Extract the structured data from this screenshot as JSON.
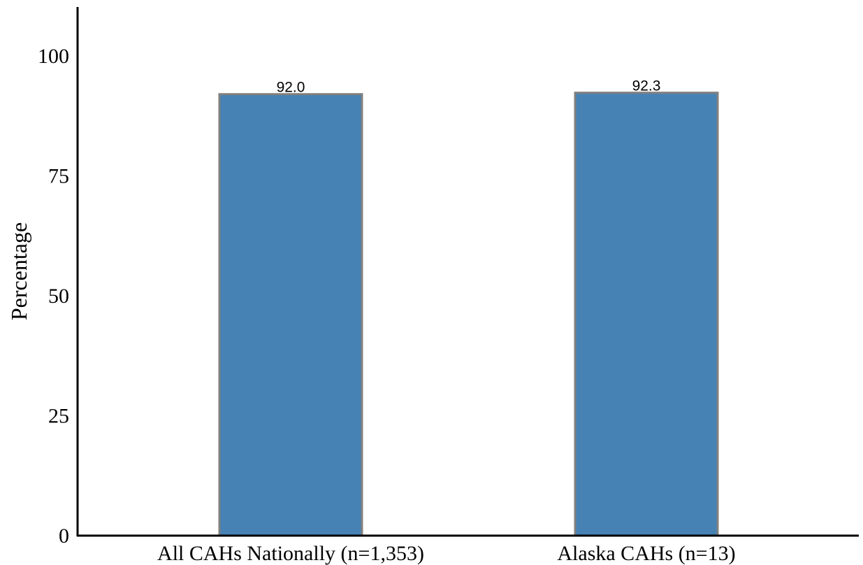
{
  "chart_data": {
    "type": "bar",
    "title": "",
    "xlabel": "",
    "ylabel": "Percentage",
    "categories": [
      "All CAHs Nationally (n=1,353)",
      "Alaska CAHs (n=13)"
    ],
    "values": [
      92.0,
      92.3
    ],
    "data_labels": [
      "92.0",
      "92.3"
    ],
    "ylim": [
      0,
      110
    ],
    "yticks": [
      0,
      25,
      50,
      75,
      100
    ],
    "ytick_labels": [
      "0",
      "25",
      "50",
      "75",
      "100"
    ],
    "grid": false,
    "legend": "none",
    "colors": {
      "bar": "#4682b4",
      "bar_edge": "#808080",
      "axis": "#000000"
    }
  }
}
